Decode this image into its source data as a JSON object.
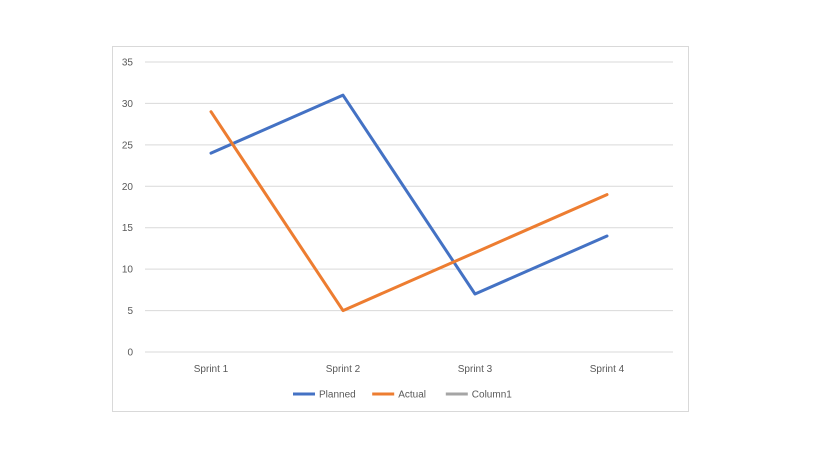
{
  "chart_data": {
    "type": "line",
    "title": "",
    "xlabel": "",
    "ylabel": "",
    "categories": [
      "Sprint 1",
      "Sprint 2",
      "Sprint 3",
      "Sprint 4"
    ],
    "ylim": [
      0,
      35
    ],
    "yticks": [
      0,
      5,
      10,
      15,
      20,
      25,
      30,
      35
    ],
    "grid": true,
    "legend_position": "bottom",
    "series": [
      {
        "name": "Planned",
        "color": "#4472c4",
        "values": [
          24,
          31,
          7,
          14
        ]
      },
      {
        "name": "Actual",
        "color": "#ed7d31",
        "values": [
          29,
          5,
          12,
          19
        ]
      },
      {
        "name": "Column1",
        "color": "#a5a5a5",
        "values": [
          null,
          null,
          null,
          null
        ]
      }
    ]
  }
}
